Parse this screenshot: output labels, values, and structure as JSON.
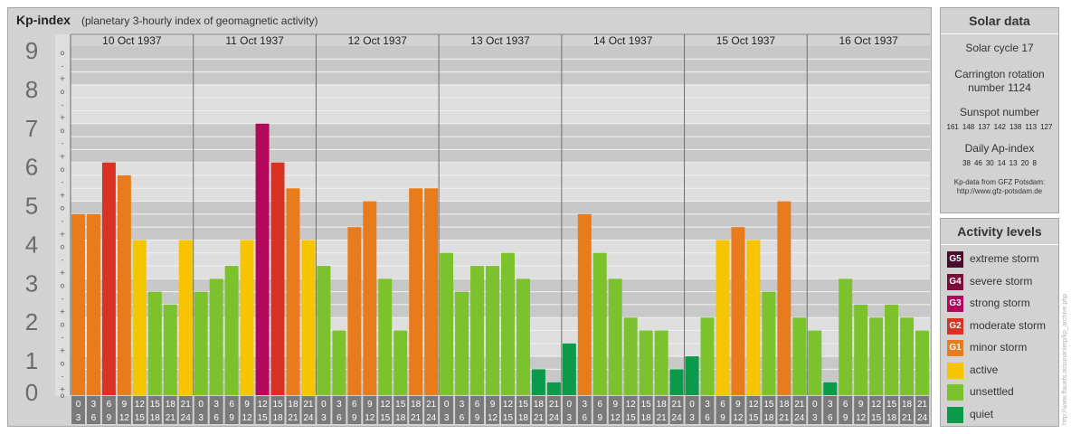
{
  "header": {
    "title": "Kp-index",
    "subtitle": "(planetary 3-hourly index of geomagnetic activity)"
  },
  "chart_data": {
    "type": "bar",
    "title": "Kp-index",
    "subtitle": "(planetary 3-hourly index of geomagnetic activity)",
    "ylim": [
      0,
      9
    ],
    "y_ticks": [
      "0",
      "1",
      "2",
      "3",
      "4",
      "5",
      "6",
      "7",
      "8",
      "9"
    ],
    "y_minor_labels": [
      "o",
      "+",
      "-"
    ],
    "days": [
      "10 Oct 1937",
      "11 Oct 1937",
      "12 Oct 1937",
      "13 Oct 1937",
      "14 Oct 1937",
      "15 Oct 1937",
      "16 Oct 1937"
    ],
    "x_tick_top": [
      "0",
      "3",
      "6",
      "9",
      "12",
      "15",
      "18",
      "21"
    ],
    "x_tick_bottom": [
      "3",
      "6",
      "9",
      "12",
      "15",
      "18",
      "21",
      "24"
    ],
    "grid": true,
    "values": [
      4.667,
      4.667,
      6.0,
      5.667,
      4.0,
      2.667,
      2.333,
      4.0,
      2.667,
      3.0,
      3.333,
      4.0,
      7.0,
      6.0,
      5.333,
      4.0,
      3.333,
      1.667,
      4.333,
      5.0,
      3.0,
      1.667,
      5.333,
      5.333,
      3.667,
      2.667,
      3.333,
      3.333,
      3.667,
      3.0,
      0.667,
      0.333,
      1.333,
      4.667,
      3.667,
      3.0,
      2.0,
      1.667,
      1.667,
      0.667,
      1.0,
      2.0,
      4.0,
      4.333,
      4.0,
      2.667,
      5.0,
      2.0,
      1.667,
      0.333,
      3.0,
      2.333,
      2.0,
      2.333,
      2.0,
      1.667
    ]
  },
  "solar": {
    "title": "Solar data",
    "cycle": "Solar cycle 17",
    "carrington_line1": "Carrington rotation",
    "carrington_line2": "number 1124",
    "sunspot_title": "Sunspot number",
    "sunspot_values": [
      "161",
      "148",
      "137",
      "142",
      "138",
      "113",
      "127"
    ],
    "ap_title": "Daily Ap-index",
    "ap_values": [
      "38",
      "46",
      "30",
      "14",
      "13",
      "20",
      "8"
    ],
    "credit_line1": "Kp-data from GFZ Potsdam:",
    "credit_line2": "http://www.gfz-potsdam.de"
  },
  "levels": {
    "title": "Activity levels",
    "items": [
      {
        "code": "G5",
        "label": "extreme storm",
        "color": "#4a0a2a"
      },
      {
        "code": "G4",
        "label": "severe storm",
        "color": "#7a0c3c"
      },
      {
        "code": "G3",
        "label": "strong storm",
        "color": "#b0085a"
      },
      {
        "code": "G2",
        "label": "moderate storm",
        "color": "#d93222"
      },
      {
        "code": "G1",
        "label": "minor storm",
        "color": "#e87b1c"
      },
      {
        "code": "",
        "label": "active",
        "color": "#f7c400"
      },
      {
        "code": "",
        "label": "unsettled",
        "color": "#7cc22c"
      },
      {
        "code": "",
        "label": "quiet",
        "color": "#0a9a4a"
      }
    ]
  },
  "watermark": "http://www.ffauefs.at/sunanlerp/kp_archive.php"
}
